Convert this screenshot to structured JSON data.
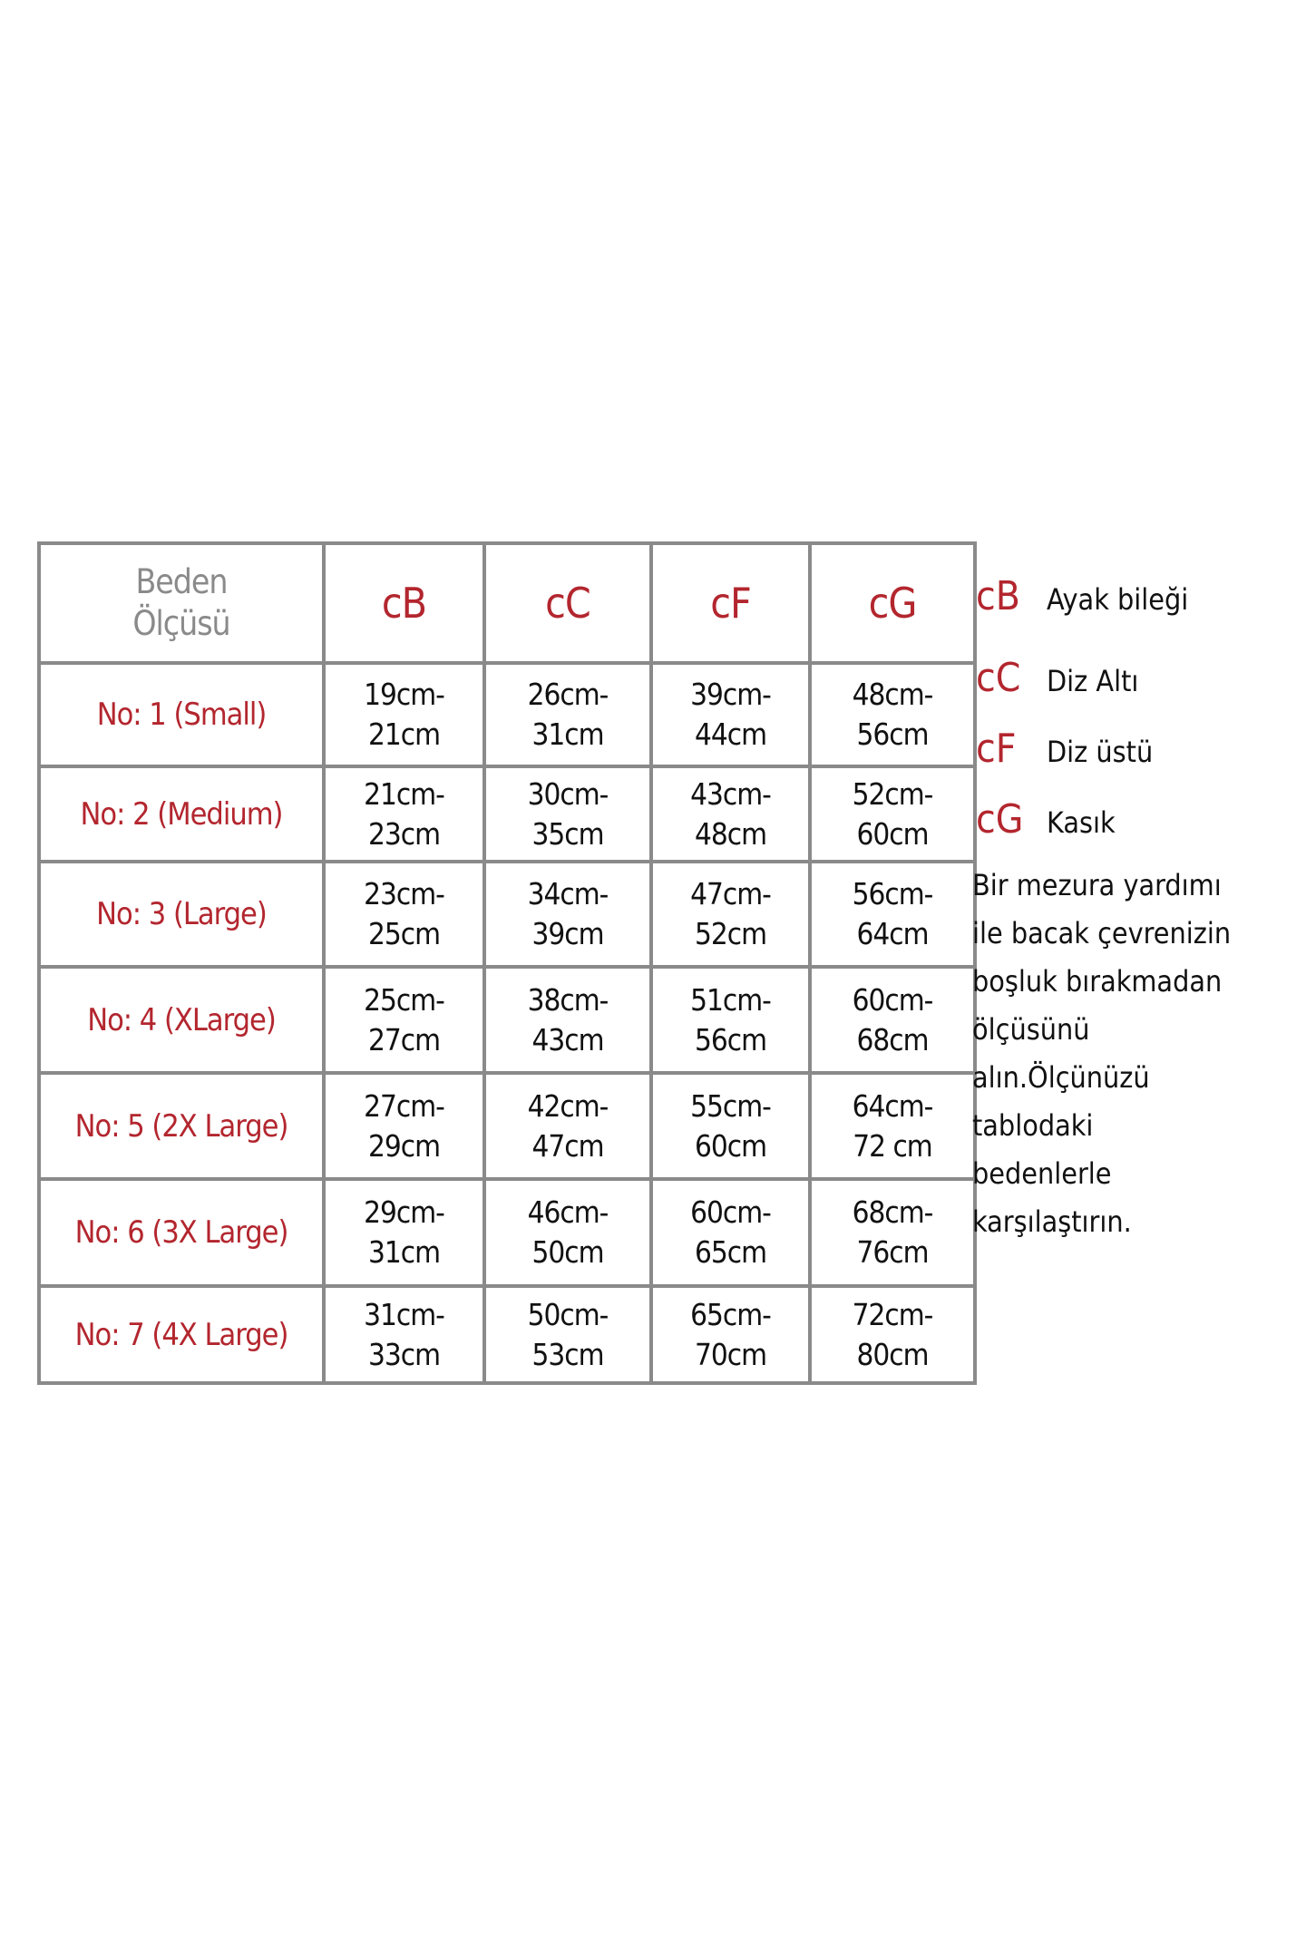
{
  "table": {
    "corner": [
      "Beden",
      "Ölçüsü"
    ],
    "columns": [
      "cB",
      "cC",
      "cF",
      "cG"
    ],
    "rows": [
      {
        "label": "No: 1 (Small)",
        "cells": [
          [
            "19cm-",
            "21cm"
          ],
          [
            "26cm-",
            "31cm"
          ],
          [
            "39cm-",
            "44cm"
          ],
          [
            "48cm-",
            "56cm"
          ]
        ]
      },
      {
        "label": "No: 2 (Medium)",
        "cells": [
          [
            "21cm-",
            "23cm"
          ],
          [
            "30cm-",
            "35cm"
          ],
          [
            "43cm-",
            "48cm"
          ],
          [
            "52cm-",
            "60cm"
          ]
        ]
      },
      {
        "label": "No: 3 (Large)",
        "cells": [
          [
            "23cm-",
            "25cm"
          ],
          [
            "34cm-",
            "39cm"
          ],
          [
            "47cm-",
            "52cm"
          ],
          [
            "56cm-",
            "64cm"
          ]
        ]
      },
      {
        "label": "No: 4 (XLarge)",
        "cells": [
          [
            "25cm-",
            "27cm"
          ],
          [
            "38cm-",
            "43cm"
          ],
          [
            "51cm-",
            "56cm"
          ],
          [
            "60cm-",
            "68cm"
          ]
        ]
      },
      {
        "label": "No: 5 (2X Large)",
        "cells": [
          [
            "27cm-",
            "29cm"
          ],
          [
            "42cm-",
            "47cm"
          ],
          [
            "55cm-",
            "60cm"
          ],
          [
            "64cm-",
            "72 cm"
          ]
        ]
      },
      {
        "label": "No: 6 (3X Large)",
        "cells": [
          [
            "29cm-",
            "31cm"
          ],
          [
            "46cm-",
            "50cm"
          ],
          [
            "60cm-",
            "65cm"
          ],
          [
            "68cm-",
            "76cm"
          ]
        ]
      },
      {
        "label": "No: 7 (4X Large)",
        "cells": [
          [
            "31cm-",
            "33cm"
          ],
          [
            "50cm-",
            "53cm"
          ],
          [
            "65cm-",
            "70cm"
          ],
          [
            "72cm-",
            "80cm"
          ]
        ]
      }
    ]
  },
  "legend": [
    {
      "key": "cB",
      "value": "Ayak bileği"
    },
    {
      "key": "cC",
      "value": "Diz Altı"
    },
    {
      "key": "cF",
      "value": "Diz  üstü"
    },
    {
      "key": "cG",
      "value": "Kasık"
    }
  ],
  "note": [
    "Bir mezura yardımı",
    "ile bacak çevrenizin",
    "boşluk bırakmadan",
    "ölçüsünü",
    "alın.Ölçünüzü",
    "tablodaki",
    "bedenlerle",
    "karşılaştırın."
  ],
  "colors": {
    "accent": "#b3262e",
    "border": "#8a8a8a",
    "muted": "#8a8a8a"
  }
}
